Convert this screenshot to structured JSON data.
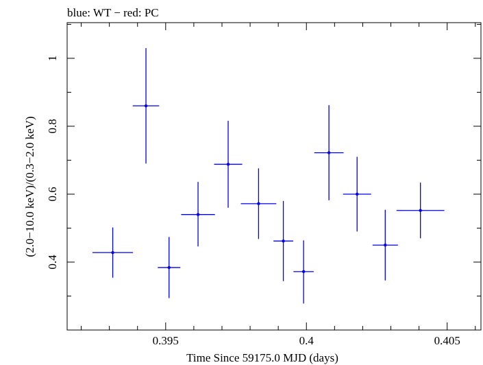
{
  "chart_data": {
    "type": "scatter",
    "title": "blue: WT − red: PC",
    "xlabel": "Time Since 59175.0 MJD (days)",
    "ylabel": "(2.0−10.0 keV)/(0.3−2.0 keV)",
    "xlim": [
      0.3915,
      0.4062
    ],
    "ylim": [
      0.2,
      1.105
    ],
    "xticks": [
      {
        "value": 0.395,
        "label": "0.395"
      },
      {
        "value": 0.4,
        "label": "0.4"
      },
      {
        "value": 0.405,
        "label": "0.405"
      }
    ],
    "yticks": [
      {
        "value": 0.4,
        "label": "0.4"
      },
      {
        "value": 0.6,
        "label": "0.6"
      },
      {
        "value": 0.8,
        "label": "0.8"
      },
      {
        "value": 1.0,
        "label": "1"
      }
    ],
    "series": [
      {
        "name": "WT",
        "color": "#0000ee",
        "points": [
          {
            "x": 0.39312,
            "xerr": 0.00072,
            "y": 0.428,
            "ylo": 0.354,
            "yhi": 0.502
          },
          {
            "x": 0.3943,
            "xerr": 0.00047,
            "y": 0.86,
            "ylo": 0.69,
            "yhi": 1.03
          },
          {
            "x": 0.39512,
            "xerr": 0.0004,
            "y": 0.384,
            "ylo": 0.294,
            "yhi": 0.474
          },
          {
            "x": 0.39615,
            "xerr": 0.0006,
            "y": 0.54,
            "ylo": 0.446,
            "yhi": 0.636
          },
          {
            "x": 0.39722,
            "xerr": 0.0005,
            "y": 0.688,
            "ylo": 0.56,
            "yhi": 0.816
          },
          {
            "x": 0.3983,
            "xerr": 0.00063,
            "y": 0.572,
            "ylo": 0.468,
            "yhi": 0.676
          },
          {
            "x": 0.39918,
            "xerr": 0.00035,
            "y": 0.462,
            "ylo": 0.344,
            "yhi": 0.58
          },
          {
            "x": 0.3999,
            "xerr": 0.00036,
            "y": 0.372,
            "ylo": 0.278,
            "yhi": 0.464
          },
          {
            "x": 0.4008,
            "xerr": 0.00052,
            "y": 0.722,
            "ylo": 0.582,
            "yhi": 0.862
          },
          {
            "x": 0.4018,
            "xerr": 0.0005,
            "y": 0.6,
            "ylo": 0.49,
            "yhi": 0.71
          },
          {
            "x": 0.4028,
            "xerr": 0.00045,
            "y": 0.45,
            "ylo": 0.346,
            "yhi": 0.554
          },
          {
            "x": 0.40405,
            "xerr": 0.00085,
            "y": 0.552,
            "ylo": 0.47,
            "yhi": 0.634
          }
        ]
      }
    ]
  }
}
